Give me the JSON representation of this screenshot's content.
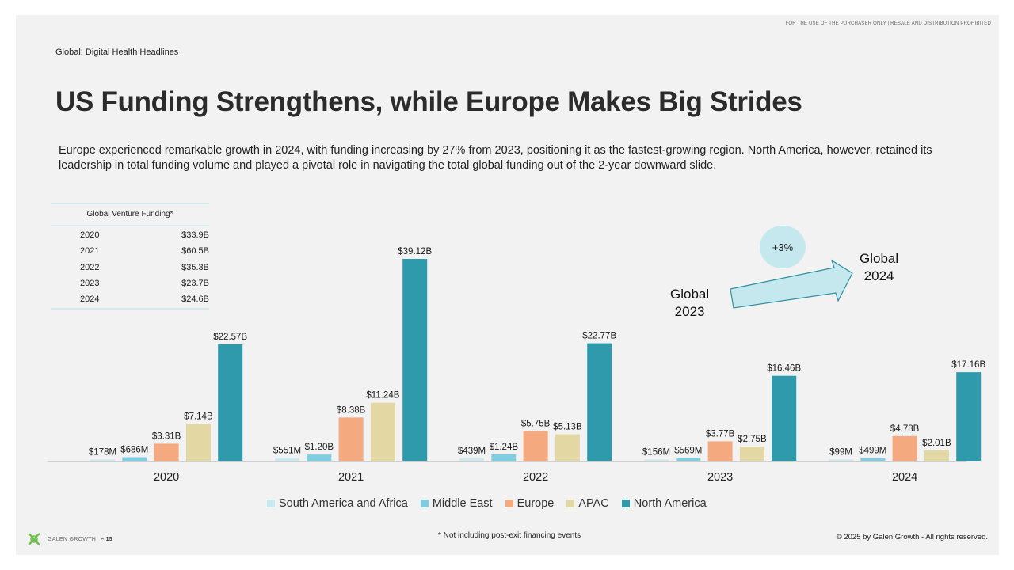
{
  "header": {
    "disclaimer": "FOR THE USE OF THE PURCHASER ONLY | RESALE AND DISTRIBUTION PROHIBITED",
    "section": "Global: Digital Health Headlines",
    "title": "US Funding Strengthens, while Europe Makes Big Strides",
    "intro": "Europe experienced remarkable growth in 2024, with funding increasing by 27% from 2023, positioning it as the fastest-growing region. North America, however, retained its leadership in total funding volume and played a pivotal role in navigating the total global funding out of the 2-year downward slide."
  },
  "funding_table": {
    "header": "Global Venture Funding*",
    "rows": [
      {
        "year": "2020",
        "value": "$33.9B"
      },
      {
        "year": "2021",
        "value": "$60.5B"
      },
      {
        "year": "2022",
        "value": "$35.3B"
      },
      {
        "year": "2023",
        "value": "$23.7B"
      },
      {
        "year": "2024",
        "value": "$24.6B"
      }
    ]
  },
  "callout": {
    "growth": "+3%",
    "from_line1": "Global",
    "from_line2": "2023",
    "to_line1": "Global",
    "to_line2": "2024",
    "arrow_color": "#c5e7ee"
  },
  "chart_data": {
    "type": "bar",
    "categories": [
      "2020",
      "2021",
      "2022",
      "2023",
      "2024"
    ],
    "xlabel": "",
    "ylabel": "",
    "unit": "USD millions",
    "ylim": [
      0,
      40000
    ],
    "grid": false,
    "legend_position": "bottom",
    "series": [
      {
        "name": "South America and Africa",
        "color": "#c9e9f1",
        "values": [
          178,
          551,
          439,
          156,
          99
        ],
        "labels": [
          "$178M",
          "$551M",
          "$439M",
          "$156M",
          "$99M"
        ]
      },
      {
        "name": "Middle East",
        "color": "#7fcde0",
        "values": [
          686,
          1200,
          1240,
          569,
          499
        ],
        "labels": [
          "$686M",
          "$1.20B",
          "$1.24B",
          "$569M",
          "$499M"
        ]
      },
      {
        "name": "Europe",
        "color": "#f4a97f",
        "values": [
          3310,
          8380,
          5750,
          3770,
          4780
        ],
        "labels": [
          "$3.31B",
          "$8.38B",
          "$5.75B",
          "$3.77B",
          "$4.78B"
        ]
      },
      {
        "name": "APAC",
        "color": "#e3d8a4",
        "values": [
          7140,
          11240,
          5130,
          2750,
          2010
        ],
        "labels": [
          "$7.14B",
          "$11.24B",
          "$5.13B",
          "$2.75B",
          "$2.01B"
        ]
      },
      {
        "name": "North America",
        "color": "#2e9aab",
        "values": [
          22570,
          39120,
          22770,
          16460,
          17160
        ],
        "labels": [
          "$22.57B",
          "$39.12B",
          "$22.77B",
          "$16.46B",
          "$17.16B"
        ]
      }
    ]
  },
  "footer": {
    "footnote": "* Not including post-exit financing events",
    "brand": "GALEN GROWTH",
    "page": "– 15",
    "copyright": "© 2025 by Galen Growth  - All rights reserved.",
    "logo_color": "#6cc04a"
  }
}
